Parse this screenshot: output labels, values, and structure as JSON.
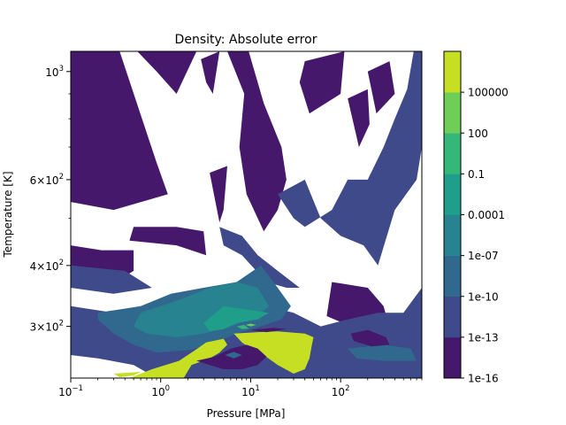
{
  "chart_data": {
    "type": "contourf",
    "title": "Density: Absolute error",
    "xlabel": "Pressure [MPa]",
    "ylabel": "Temperature [K]",
    "xscale": "log",
    "yscale": "log",
    "xlim": [
      0.1,
      800
    ],
    "ylim": [
      235,
      1100
    ],
    "x_ticks": [
      {
        "value": 0.1,
        "base": "10",
        "exp": "−1"
      },
      {
        "value": 1,
        "base": "10",
        "exp": "0"
      },
      {
        "value": 10,
        "base": "10",
        "exp": "1"
      },
      {
        "value": 100,
        "base": "10",
        "exp": "2"
      }
    ],
    "y_ticks": [
      {
        "value": 300,
        "mant": "3×10",
        "exp": "2"
      },
      {
        "value": 400,
        "mant": "4×10",
        "exp": "2"
      },
      {
        "value": 600,
        "mant": "6×10",
        "exp": "2"
      },
      {
        "value": 1000,
        "mant": "10",
        "exp": "3"
      }
    ],
    "colorbar": {
      "scale": "log",
      "levels": [
        1e-16,
        1e-13,
        1e-10,
        1e-07,
        0.0001,
        0.1,
        100,
        100000
      ],
      "tick_labels": [
        "1e-16",
        "1e-13",
        "1e-10",
        "1e-07",
        "0.0001",
        "0.1",
        "100",
        "100000"
      ],
      "colors": [
        "#46186b",
        "#3e4a89",
        "#31688e",
        "#26838f",
        "#1f9e89",
        "#35b779",
        "#6ece58",
        "#c7df22"
      ]
    },
    "regions": [
      {
        "level": 0,
        "pts": [
          [
            0.1,
            1100
          ],
          [
            0.35,
            1100
          ],
          [
            0.9,
            650
          ],
          [
            1.2,
            560
          ],
          [
            0.3,
            520
          ],
          [
            0.1,
            540
          ]
        ]
      },
      {
        "level": 0,
        "pts": [
          [
            0.55,
            1100
          ],
          [
            2.5,
            1100
          ],
          [
            1.5,
            900
          ],
          [
            0.9,
            1000
          ]
        ]
      },
      {
        "level": 0,
        "pts": [
          [
            0.1,
            400
          ],
          [
            0.25,
            360
          ],
          [
            0.5,
            390
          ],
          [
            0.5,
            430
          ],
          [
            0.22,
            430
          ],
          [
            0.1,
            440
          ]
        ]
      },
      {
        "level": 0,
        "pts": [
          [
            0.45,
            450
          ],
          [
            1.5,
            440
          ],
          [
            3.2,
            420
          ],
          [
            3.0,
            470
          ],
          [
            1.5,
            480
          ],
          [
            0.5,
            480
          ]
        ]
      },
      {
        "level": 0,
        "pts": [
          [
            2.8,
            1060
          ],
          [
            4.5,
            1100
          ],
          [
            3.8,
            900
          ],
          [
            3.2,
            950
          ]
        ]
      },
      {
        "level": 0,
        "pts": [
          [
            5.5,
            1100
          ],
          [
            9.5,
            1100
          ],
          [
            14,
            860
          ],
          [
            22,
            700
          ],
          [
            25,
            600
          ],
          [
            20,
            520
          ],
          [
            14,
            470
          ],
          [
            9,
            560
          ],
          [
            7.5,
            700
          ],
          [
            8.5,
            900
          ]
        ]
      },
      {
        "level": 0,
        "pts": [
          [
            3.5,
            620
          ],
          [
            5.5,
            640
          ],
          [
            5.0,
            520
          ],
          [
            4.5,
            490
          ]
        ]
      },
      {
        "level": 0,
        "pts": [
          [
            40,
            1050
          ],
          [
            110,
            1100
          ],
          [
            100,
            900
          ],
          [
            45,
            820
          ],
          [
            35,
            950
          ]
        ]
      },
      {
        "level": 0,
        "pts": [
          [
            120,
            880
          ],
          [
            200,
            920
          ],
          [
            210,
            780
          ],
          [
            160,
            700
          ]
        ]
      },
      {
        "level": 0,
        "pts": [
          [
            200,
            1000
          ],
          [
            350,
            1050
          ],
          [
            400,
            900
          ],
          [
            250,
            820
          ]
        ]
      },
      {
        "level": 0,
        "pts": [
          [
            80,
            370
          ],
          [
            200,
            360
          ],
          [
            300,
            330
          ],
          [
            330,
            310
          ],
          [
            130,
            300
          ],
          [
            70,
            315
          ]
        ]
      },
      {
        "level": 0,
        "pts": [
          [
            0.5,
            270
          ],
          [
            1.0,
            262
          ],
          [
            1.7,
            255
          ],
          [
            1.2,
            248
          ],
          [
            0.6,
            252
          ]
        ]
      },
      {
        "level": 0,
        "pts": [
          [
            10,
            310
          ],
          [
            16,
            305
          ],
          [
            22,
            300
          ],
          [
            13,
            296
          ]
        ]
      },
      {
        "level": 1,
        "pts": [
          [
            0.1,
            330
          ],
          [
            0.3,
            320
          ],
          [
            0.6,
            310
          ],
          [
            1.5,
            300
          ],
          [
            3.5,
            300
          ],
          [
            6,
            330
          ],
          [
            15,
            330
          ],
          [
            30,
            320
          ],
          [
            60,
            300
          ],
          [
            120,
            310
          ],
          [
            260,
            320
          ],
          [
            500,
            320
          ],
          [
            800,
            360
          ],
          [
            800,
            235
          ],
          [
            0.9,
            235
          ],
          [
            0.5,
            250
          ],
          [
            0.2,
            258
          ],
          [
            0.1,
            262
          ]
        ]
      },
      {
        "level": 1,
        "pts": [
          [
            20,
            560
          ],
          [
            40,
            600
          ],
          [
            60,
            500
          ],
          [
            100,
            460
          ],
          [
            180,
            440
          ],
          [
            260,
            400
          ],
          [
            400,
            520
          ],
          [
            700,
            600
          ],
          [
            800,
            700
          ],
          [
            800,
            1100
          ],
          [
            650,
            1100
          ],
          [
            550,
            920
          ],
          [
            400,
            800
          ],
          [
            300,
            700
          ],
          [
            200,
            600
          ],
          [
            120,
            600
          ],
          [
            80,
            520
          ],
          [
            40,
            480
          ],
          [
            30,
            500
          ]
        ]
      },
      {
        "level": 1,
        "pts": [
          [
            0.1,
            360
          ],
          [
            0.3,
            350
          ],
          [
            0.8,
            360
          ],
          [
            0.4,
            390
          ],
          [
            0.1,
            400
          ]
        ]
      },
      {
        "level": 1,
        "pts": [
          [
            4.5,
            480
          ],
          [
            8,
            460
          ],
          [
            12,
            420
          ],
          [
            20,
            390
          ],
          [
            35,
            360
          ],
          [
            25,
            360
          ],
          [
            15,
            370
          ],
          [
            8,
            420
          ],
          [
            5,
            440
          ]
        ]
      },
      {
        "level": 2,
        "pts": [
          [
            0.2,
            320
          ],
          [
            0.6,
            330
          ],
          [
            1.3,
            350
          ],
          [
            3,
            360
          ],
          [
            7,
            370
          ],
          [
            13,
            400
          ],
          [
            20,
            360
          ],
          [
            28,
            330
          ],
          [
            22,
            310
          ],
          [
            13,
            300
          ],
          [
            7,
            290
          ],
          [
            3.5,
            275
          ],
          [
            2,
            268
          ],
          [
            0.9,
            265
          ],
          [
            0.5,
            275
          ],
          [
            0.3,
            290
          ],
          [
            0.2,
            310
          ]
        ]
      },
      {
        "level": 2,
        "pts": [
          [
            120,
            270
          ],
          [
            300,
            275
          ],
          [
            600,
            270
          ],
          [
            700,
            255
          ],
          [
            300,
            255
          ],
          [
            150,
            258
          ]
        ]
      },
      {
        "level": 3,
        "pts": [
          [
            0.6,
            320
          ],
          [
            1.6,
            340
          ],
          [
            3.5,
            360
          ],
          [
            7,
            370
          ],
          [
            12,
            360
          ],
          [
            16,
            330
          ],
          [
            12,
            315
          ],
          [
            6,
            300
          ],
          [
            3,
            290
          ],
          [
            1.5,
            285
          ],
          [
            0.7,
            290
          ],
          [
            0.5,
            300
          ]
        ]
      },
      {
        "level": 3,
        "pts": [
          [
            2.2,
            300
          ],
          [
            3,
            330
          ],
          [
            7,
            340
          ],
          [
            10,
            320
          ],
          [
            7,
            305
          ],
          [
            4,
            296
          ],
          [
            2.7,
            292
          ]
        ]
      },
      {
        "level": 4,
        "pts": [
          [
            3,
            305
          ],
          [
            5,
            330
          ],
          [
            9,
            325
          ],
          [
            16,
            320
          ],
          [
            12,
            310
          ],
          [
            7,
            305
          ],
          [
            5,
            296
          ],
          [
            3.5,
            293
          ]
        ]
      },
      {
        "level": 5,
        "pts": [
          [
            7,
            300
          ],
          [
            8.5,
            302
          ],
          [
            9.5,
            297
          ],
          [
            8,
            296
          ]
        ]
      },
      {
        "level": 6,
        "pts": [
          [
            8.8,
            302
          ],
          [
            10,
            304
          ],
          [
            11.5,
            302
          ],
          [
            10,
            300
          ]
        ]
      },
      {
        "level": 7,
        "pts": [
          [
            0.45,
            235
          ],
          [
            0.8,
            245
          ],
          [
            1.6,
            255
          ],
          [
            2.4,
            268
          ],
          [
            3.2,
            278
          ],
          [
            5,
            283
          ],
          [
            5.5,
            275
          ],
          [
            4.5,
            265
          ],
          [
            3.5,
            258
          ],
          [
            2.2,
            250
          ],
          [
            1.8,
            235
          ]
        ]
      },
      {
        "level": 7,
        "pts": [
          [
            6.5,
            290
          ],
          [
            12,
            292
          ],
          [
            20,
            293
          ],
          [
            40,
            290
          ],
          [
            50,
            285
          ],
          [
            48,
            275
          ],
          [
            45,
            258
          ],
          [
            40,
            245
          ],
          [
            30,
            240
          ],
          [
            20,
            250
          ],
          [
            14,
            262
          ],
          [
            10,
            270
          ],
          [
            8,
            278
          ]
        ]
      },
      {
        "level": 7,
        "pts": [
          [
            0.3,
            240
          ],
          [
            0.6,
            242
          ],
          [
            0.5,
            238
          ],
          [
            0.35,
            236
          ]
        ]
      },
      {
        "level": 0,
        "pts": [
          [
            2.5,
            255
          ],
          [
            4,
            260
          ],
          [
            6,
            270
          ],
          [
            9,
            275
          ],
          [
            12,
            270
          ],
          [
            15,
            260
          ],
          [
            12,
            250
          ],
          [
            8,
            245
          ],
          [
            5,
            245
          ],
          [
            3.5,
            250
          ]
        ]
      },
      {
        "level": 0,
        "pts": [
          [
            5,
            250
          ],
          [
            8,
            255
          ],
          [
            10,
            250
          ],
          [
            7,
            247
          ]
        ]
      },
      {
        "level": 0,
        "pts": [
          [
            10,
            295
          ],
          [
            18,
            298
          ],
          [
            25,
            296
          ],
          [
            15,
            292
          ]
        ]
      },
      {
        "level": 0,
        "pts": [
          [
            130,
            290
          ],
          [
            200,
            295
          ],
          [
            320,
            285
          ],
          [
            350,
            275
          ],
          [
            220,
            273
          ],
          [
            140,
            280
          ]
        ]
      },
      {
        "level": 2,
        "pts": [
          [
            5.2,
            262
          ],
          [
            6.5,
            266
          ],
          [
            8.0,
            262
          ],
          [
            6.5,
            258
          ]
        ]
      }
    ]
  }
}
